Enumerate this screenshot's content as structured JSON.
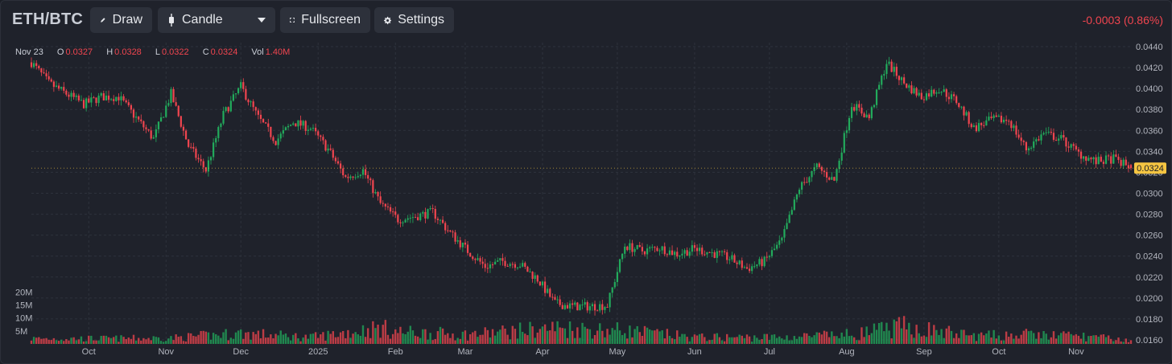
{
  "toolbar": {
    "symbol": "ETH/BTC",
    "draw_label": "Draw",
    "chart_type_label": "Candle",
    "fullscreen_label": "Fullscreen",
    "settings_label": "Settings",
    "change_text": "-0.0003 (0.86%)"
  },
  "legend": {
    "date": "Nov 23",
    "o_label": "O",
    "o_value": "0.0327",
    "h_label": "H",
    "h_value": "0.0328",
    "l_label": "L",
    "l_value": "0.0322",
    "c_label": "C",
    "c_value": "0.0324",
    "vol_label": "Vol",
    "vol_value": "1.40M"
  },
  "colors": {
    "up": "#22ab5c",
    "down": "#f0454f",
    "background": "#1f222b",
    "grid": "#2e323c",
    "last_price": "#f5c542"
  },
  "chart_data": {
    "type": "candlestick",
    "title": "ETH/BTC",
    "x_tick_labels": [
      "Oct",
      "Nov",
      "Dec",
      "2025",
      "Feb",
      "Mar",
      "Apr",
      "May",
      "Jun",
      "Jul",
      "Aug",
      "Sep",
      "Oct",
      "Nov"
    ],
    "y_tick_labels": [
      "0.0440",
      "0.0420",
      "0.0400",
      "0.0380",
      "0.0360",
      "0.0340",
      "0.0320",
      "0.0300",
      "0.0280",
      "0.0260",
      "0.0240",
      "0.0220",
      "0.0200",
      "0.0180",
      "0.0160"
    ],
    "ylim": [
      0.016,
      0.044
    ],
    "last_price_label": "0.0324",
    "volume_tick_labels": [
      "20M",
      "15M",
      "10M",
      "5M"
    ],
    "volume_ylim": [
      0,
      20
    ],
    "grid": true,
    "close_path": {
      "x": [
        "2024-09-08",
        "2024-09-15",
        "2024-09-22",
        "2024-09-29",
        "2024-10-06",
        "2024-10-13",
        "2024-10-20",
        "2024-10-27",
        "2024-11-03",
        "2024-11-10",
        "2024-11-17",
        "2024-11-24",
        "2024-12-01",
        "2024-12-08",
        "2024-12-15",
        "2024-12-22",
        "2024-12-29",
        "2025-01-05",
        "2025-01-12",
        "2025-01-19",
        "2025-01-26",
        "2025-02-02",
        "2025-02-09",
        "2025-02-16",
        "2025-02-23",
        "2025-03-02",
        "2025-03-09",
        "2025-03-16",
        "2025-03-23",
        "2025-03-30",
        "2025-04-06",
        "2025-04-13",
        "2025-04-20",
        "2025-04-27",
        "2025-05-04",
        "2025-05-11",
        "2025-05-18",
        "2025-05-25",
        "2025-06-01",
        "2025-06-08",
        "2025-06-15",
        "2025-06-22",
        "2025-06-29",
        "2025-07-06",
        "2025-07-13",
        "2025-07-20",
        "2025-07-27",
        "2025-08-03",
        "2025-08-10",
        "2025-08-17",
        "2025-08-24",
        "2025-08-31",
        "2025-09-07",
        "2025-09-14",
        "2025-09-21",
        "2025-09-28",
        "2025-10-05",
        "2025-10-12",
        "2025-10-19",
        "2025-10-26",
        "2025-11-02",
        "2025-11-09",
        "2025-11-16",
        "2025-11-23"
      ],
      "y": [
        0.0425,
        0.0405,
        0.0395,
        0.0385,
        0.0392,
        0.0392,
        0.0372,
        0.0352,
        0.0395,
        0.0345,
        0.0322,
        0.0375,
        0.0402,
        0.0372,
        0.035,
        0.0368,
        0.0362,
        0.0342,
        0.0315,
        0.0322,
        0.029,
        0.0275,
        0.0278,
        0.0282,
        0.0262,
        0.0245,
        0.023,
        0.0235,
        0.0232,
        0.0218,
        0.0195,
        0.0192,
        0.0192,
        0.0193,
        0.025,
        0.0245,
        0.0248,
        0.0242,
        0.0247,
        0.0243,
        0.0238,
        0.0228,
        0.0235,
        0.0255,
        0.0305,
        0.0325,
        0.0312,
        0.0385,
        0.0372,
        0.0425,
        0.0405,
        0.0392,
        0.04,
        0.0388,
        0.0362,
        0.037,
        0.037,
        0.0342,
        0.0357,
        0.0352,
        0.0338,
        0.033,
        0.0333,
        0.0324
      ]
    },
    "volume_path": {
      "x": [
        "2024-09-08",
        "2024-10-06",
        "2024-11-03",
        "2024-12-01",
        "2024-12-29",
        "2025-01-26",
        "2025-02-02",
        "2025-03-02",
        "2025-04-06",
        "2025-05-04",
        "2025-06-01",
        "2025-07-06",
        "2025-08-03",
        "2025-08-24",
        "2025-09-21",
        "2025-10-12",
        "2025-11-02",
        "2025-11-23"
      ],
      "y": [
        2.0,
        2.0,
        2.2,
        4.0,
        2.5,
        6.0,
        4.5,
        3.5,
        6.0,
        5.0,
        2.5,
        2.5,
        3.5,
        6.5,
        3.0,
        3.5,
        3.0,
        1.4
      ]
    }
  }
}
